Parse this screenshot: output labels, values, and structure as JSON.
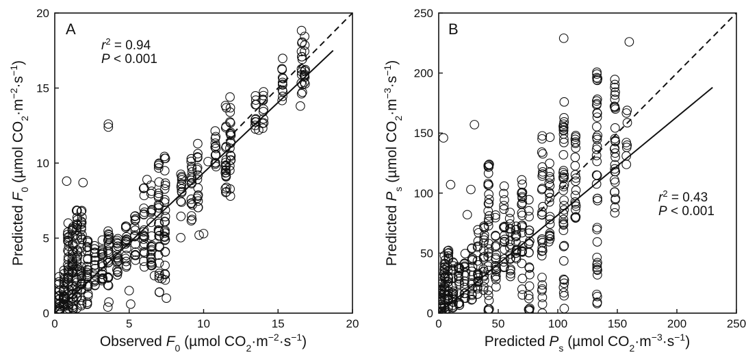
{
  "chart_data": [
    {
      "type": "scatter",
      "panel": "A",
      "xlim": [
        0,
        20
      ],
      "ylim": [
        0,
        20
      ],
      "xticks": [
        0,
        5,
        10,
        15,
        20
      ],
      "yticks": [
        0,
        5,
        10,
        15,
        20
      ],
      "xlabel": {
        "pre": "Observed ",
        "var": "F",
        "sub": "0",
        "unit": " (µmol CO",
        "unit_sub": "2",
        "unit_mid": "·m",
        "sup1": "−2",
        "unit_mid2": "·s",
        "sup2": "−1",
        "unit_end": ")"
      },
      "ylabel": {
        "pre": "Predicted ",
        "var": "F",
        "sub": "0",
        "unit": " (µmol CO",
        "unit_sub": "2",
        "unit_mid": "·m",
        "sup1": "−2",
        "unit_mid2": "·s",
        "sup2": "−1",
        "unit_end": ")"
      },
      "stats": {
        "r2_var": "r",
        "r2_sup": "2",
        "r2_val": " = 0.94",
        "p_var": "P",
        "p_val": " < 0.001"
      },
      "identity_line": {
        "style": "dashed",
        "x": [
          11.5,
          20
        ],
        "y": [
          11.5,
          20
        ]
      },
      "fit_line": {
        "style": "solid",
        "x": [
          0,
          18.7
        ],
        "y": [
          0,
          17.5
        ]
      },
      "clusters": [
        {
          "x": 0.3,
          "y_min": 0.0,
          "y_max": 2.5,
          "n": 20
        },
        {
          "x": 0.6,
          "y_min": 0.0,
          "y_max": 3.0,
          "n": 22
        },
        {
          "x": 0.9,
          "y_min": 0.0,
          "y_max": 5.5,
          "n": 30
        },
        {
          "x": 1.2,
          "y_min": 0.2,
          "y_max": 6.0,
          "n": 32
        },
        {
          "x": 1.5,
          "y_min": 0.3,
          "y_max": 7.0,
          "n": 30
        },
        {
          "x": 1.8,
          "y_min": 0.4,
          "y_max": 7.0,
          "n": 28
        },
        {
          "x": 2.2,
          "y_min": 0.5,
          "y_max": 5.5,
          "n": 24
        },
        {
          "x": 2.7,
          "y_min": 1.5,
          "y_max": 4.5,
          "n": 16
        },
        {
          "x": 3.2,
          "y_min": 2.0,
          "y_max": 5.0,
          "n": 18
        },
        {
          "x": 3.6,
          "y_min": 0.2,
          "y_max": 5.5,
          "n": 24
        },
        {
          "x": 4.2,
          "y_min": 2.5,
          "y_max": 5.5,
          "n": 16
        },
        {
          "x": 4.8,
          "y_min": 3.0,
          "y_max": 6.0,
          "n": 16
        },
        {
          "x": 5.4,
          "y_min": 3.5,
          "y_max": 6.5,
          "n": 16
        },
        {
          "x": 6.0,
          "y_min": 3.0,
          "y_max": 8.5,
          "n": 20
        },
        {
          "x": 6.5,
          "y_min": 3.0,
          "y_max": 9.0,
          "n": 22
        },
        {
          "x": 7.0,
          "y_min": 1.0,
          "y_max": 10.0,
          "n": 28
        },
        {
          "x": 7.4,
          "y_min": 2.0,
          "y_max": 11.0,
          "n": 28
        },
        {
          "x": 8.5,
          "y_min": 5.0,
          "y_max": 9.5,
          "n": 14
        },
        {
          "x": 9.2,
          "y_min": 6.0,
          "y_max": 10.5,
          "n": 18
        },
        {
          "x": 9.6,
          "y_min": 7.0,
          "y_max": 12.0,
          "n": 16
        },
        {
          "x": 10.8,
          "y_min": 9.5,
          "y_max": 12.5,
          "n": 14
        },
        {
          "x": 11.5,
          "y_min": 8.0,
          "y_max": 14.0,
          "n": 22
        },
        {
          "x": 11.8,
          "y_min": 8.0,
          "y_max": 14.5,
          "n": 20
        },
        {
          "x": 13.5,
          "y_min": 12.0,
          "y_max": 14.5,
          "n": 10
        },
        {
          "x": 14.0,
          "y_min": 12.2,
          "y_max": 15.0,
          "n": 10
        },
        {
          "x": 15.3,
          "y_min": 14.0,
          "y_max": 17.0,
          "n": 12
        },
        {
          "x": 16.6,
          "y_min": 14.5,
          "y_max": 19.0,
          "n": 14
        },
        {
          "x": 16.8,
          "y_min": 15.0,
          "y_max": 18.8,
          "n": 12
        }
      ],
      "points": [
        {
          "x": 0.8,
          "y": 8.8
        },
        {
          "x": 1.9,
          "y": 8.7
        },
        {
          "x": 0.9,
          "y": 6.0
        },
        {
          "x": 3.6,
          "y": 12.6
        },
        {
          "x": 3.6,
          "y": 12.4
        },
        {
          "x": 10.0,
          "y": 5.3
        },
        {
          "x": 9.7,
          "y": 5.2
        },
        {
          "x": 7.5,
          "y": 1.0
        },
        {
          "x": 5.1,
          "y": 0.6
        },
        {
          "x": 5.0,
          "y": 1.5
        },
        {
          "x": 7.2,
          "y": 2.3
        },
        {
          "x": 6.7,
          "y": 2.5
        },
        {
          "x": 11.8,
          "y": 7.8
        },
        {
          "x": 16.5,
          "y": 13.8
        },
        {
          "x": 13.7,
          "y": 12.2
        },
        {
          "x": 10.3,
          "y": 10.1
        },
        {
          "x": 6.2,
          "y": 8.9
        },
        {
          "x": 4.3,
          "y": 3.5
        }
      ]
    },
    {
      "type": "scatter",
      "panel": "B",
      "xlim": [
        0,
        250
      ],
      "ylim": [
        0,
        250
      ],
      "xticks": [
        0,
        50,
        100,
        150,
        200,
        250
      ],
      "yticks": [
        0,
        50,
        100,
        150,
        200,
        250
      ],
      "xlabel": {
        "pre": "Predicted ",
        "var": "P",
        "sub": "s",
        "unit": " (µmol CO",
        "unit_sub": "2",
        "unit_mid": "·m",
        "sup1": "−3",
        "unit_mid2": "·s",
        "sup2": "−1",
        "unit_end": ")"
      },
      "ylabel": {
        "pre": "Predicted ",
        "var": "P",
        "sub": "s",
        "unit": " (µmol CO",
        "unit_sub": "2",
        "unit_mid": "·m",
        "sup1": "−3",
        "unit_mid2": "·s",
        "sup2": "−1",
        "unit_end": ")"
      },
      "stats": {
        "r2_var": "r",
        "r2_sup": "2",
        "r2_val": " = 0.43",
        "p_var": "P",
        "p_val": " < 0.001"
      },
      "identity_line": {
        "style": "dashed",
        "x": [
          85,
          250
        ],
        "y": [
          85,
          250
        ]
      },
      "fit_line": {
        "style": "solid",
        "x": [
          0,
          230
        ],
        "y": [
          0,
          188
        ]
      },
      "clusters": [
        {
          "x": 2,
          "y_min": 0,
          "y_max": 30,
          "n": 26
        },
        {
          "x": 5,
          "y_min": 0,
          "y_max": 48,
          "n": 26
        },
        {
          "x": 8,
          "y_min": 0,
          "y_max": 55,
          "n": 24
        },
        {
          "x": 12,
          "y_min": 0,
          "y_max": 45,
          "n": 18
        },
        {
          "x": 17,
          "y_min": 2,
          "y_max": 40,
          "n": 16
        },
        {
          "x": 22,
          "y_min": 5,
          "y_max": 50,
          "n": 16
        },
        {
          "x": 28,
          "y_min": 8,
          "y_max": 60,
          "n": 16
        },
        {
          "x": 33,
          "y_min": 10,
          "y_max": 70,
          "n": 18
        },
        {
          "x": 38,
          "y_min": 15,
          "y_max": 80,
          "n": 18
        },
        {
          "x": 42,
          "y_min": 0,
          "y_max": 125,
          "n": 30
        },
        {
          "x": 48,
          "y_min": 20,
          "y_max": 100,
          "n": 18
        },
        {
          "x": 55,
          "y_min": 25,
          "y_max": 110,
          "n": 18
        },
        {
          "x": 60,
          "y_min": 30,
          "y_max": 90,
          "n": 16
        },
        {
          "x": 65,
          "y_min": 45,
          "y_max": 75,
          "n": 14
        },
        {
          "x": 70,
          "y_min": 15,
          "y_max": 125,
          "n": 24
        },
        {
          "x": 76,
          "y_min": 0,
          "y_max": 100,
          "n": 20
        },
        {
          "x": 87,
          "y_min": 0,
          "y_max": 150,
          "n": 28
        },
        {
          "x": 93,
          "y_min": 50,
          "y_max": 150,
          "n": 20
        },
        {
          "x": 105,
          "y_min": 0,
          "y_max": 180,
          "n": 40
        },
        {
          "x": 115,
          "y_min": 75,
          "y_max": 150,
          "n": 20
        },
        {
          "x": 133,
          "y_min": 8,
          "y_max": 202,
          "n": 40
        },
        {
          "x": 148,
          "y_min": 78,
          "y_max": 196,
          "n": 30
        },
        {
          "x": 158,
          "y_min": 100,
          "y_max": 175,
          "n": 8
        }
      ],
      "points": [
        {
          "x": 4,
          "y": 146
        },
        {
          "x": 30,
          "y": 157
        },
        {
          "x": 105,
          "y": 229
        },
        {
          "x": 160,
          "y": 226
        },
        {
          "x": 133,
          "y": 8
        },
        {
          "x": 27,
          "y": 103
        },
        {
          "x": 24,
          "y": 82
        },
        {
          "x": 10,
          "y": 107
        },
        {
          "x": 105,
          "y": 17
        },
        {
          "x": 87,
          "y": 0
        },
        {
          "x": 76,
          "y": 2
        }
      ]
    }
  ]
}
